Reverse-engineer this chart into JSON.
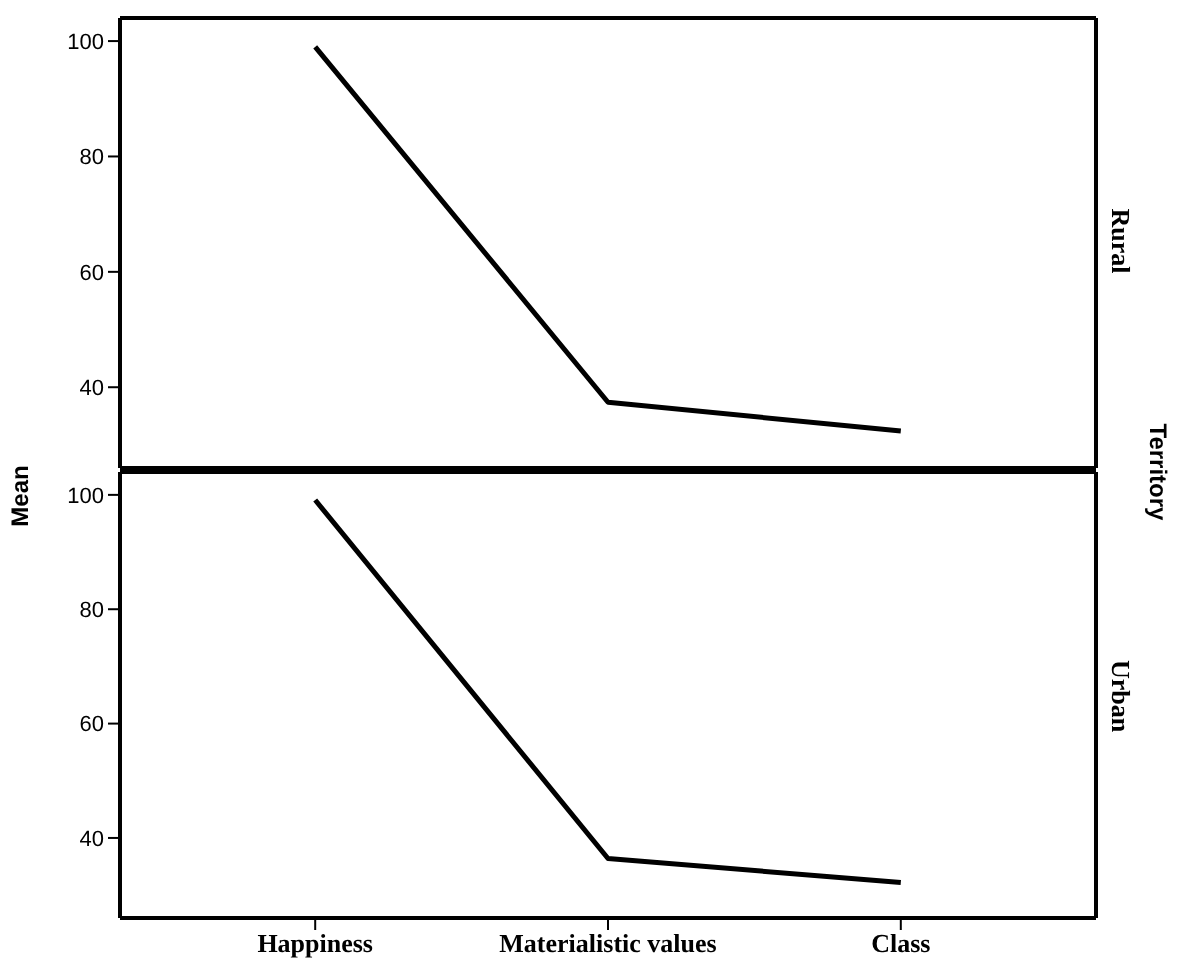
{
  "chart_data": [
    {
      "type": "line",
      "title": "Rural",
      "ylabel": "Mean",
      "annotations": [
        "Territory"
      ],
      "series": [
        {
          "color": "#000000",
          "values": [
            99,
            37.4,
            32.4
          ]
        }
      ],
      "ylim": [
        26,
        104
      ],
      "yticks": [
        40,
        60,
        80,
        100
      ],
      "tick_labels": "y"
    },
    {
      "type": "line",
      "title": "Urban",
      "categories": [
        "Happiness",
        "Materialistic values",
        "Class"
      ],
      "series": [
        {
          "color": "#000000",
          "values": [
            99.1,
            36.4,
            32.2
          ]
        }
      ],
      "ylim": [
        26,
        104
      ],
      "yticks": [
        40,
        60,
        80,
        100
      ]
    }
  ]
}
